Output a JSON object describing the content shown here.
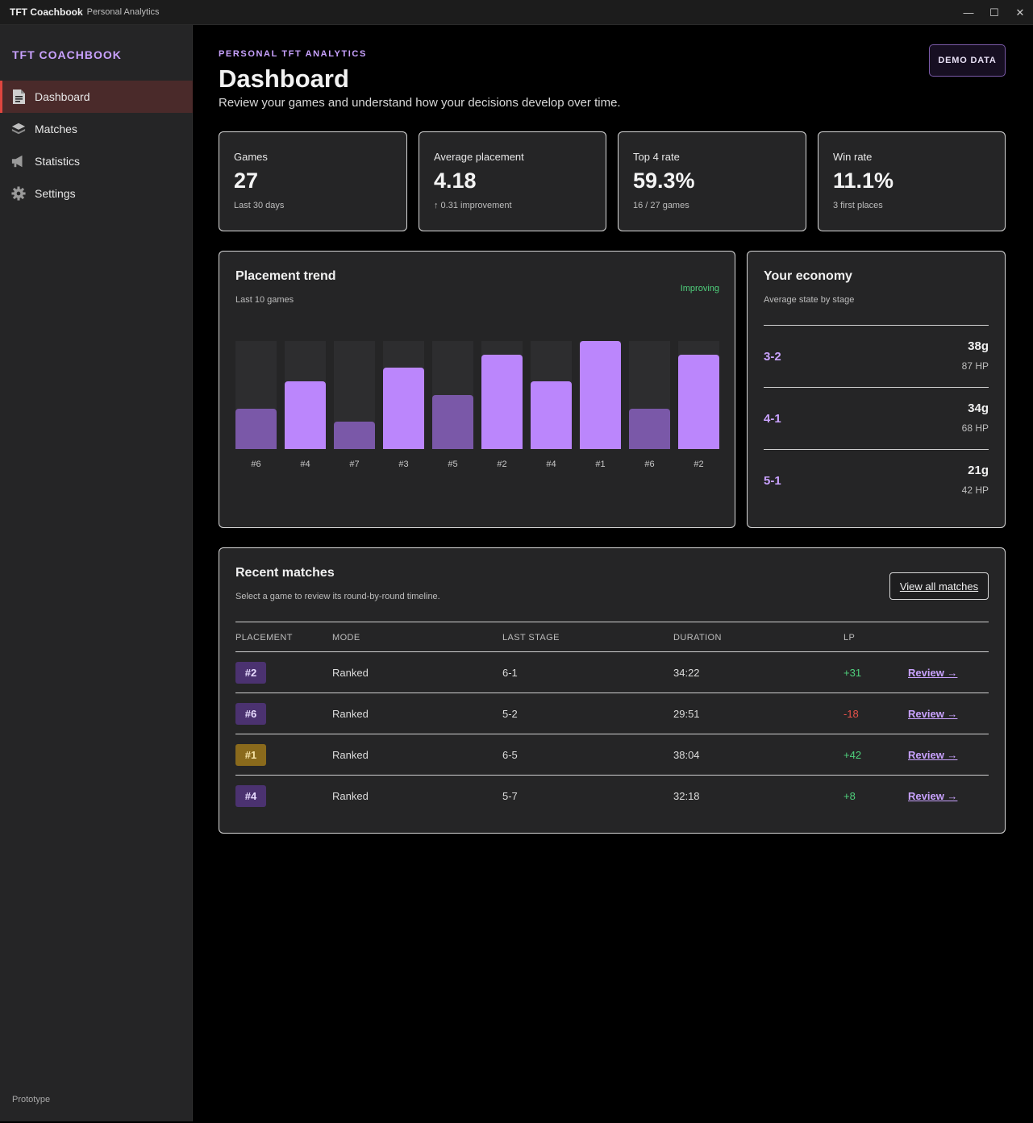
{
  "window": {
    "app_name": "TFT Coachbook",
    "app_sub": "Personal Analytics",
    "controls": [
      "—",
      "☐",
      "✕"
    ]
  },
  "sidebar": {
    "brand": "TFT COACHBOOK",
    "items": [
      {
        "label": "Dashboard",
        "icon": "document-icon",
        "active": true
      },
      {
        "label": "Matches",
        "icon": "layers-icon",
        "active": false
      },
      {
        "label": "Statistics",
        "icon": "megaphone-icon",
        "active": false
      },
      {
        "label": "Settings",
        "icon": "gear-icon",
        "active": false
      }
    ],
    "footer": "Prototype"
  },
  "header": {
    "eyebrow": "PERSONAL TFT ANALYTICS",
    "title": "Dashboard",
    "subtitle": "Review your games and understand how your decisions develop over time.",
    "demo_button": "DEMO DATA"
  },
  "stats": [
    {
      "label": "Games",
      "value": "27",
      "sub": "Last 30 days"
    },
    {
      "label": "Average placement",
      "value": "4.18",
      "sub": "↑ 0.31 improvement"
    },
    {
      "label": "Top 4 rate",
      "value": "59.3%",
      "sub": "16 / 27 games"
    },
    {
      "label": "Win rate",
      "value": "11.1%",
      "sub": "3 first places"
    }
  ],
  "trend": {
    "title": "Placement trend",
    "subtitle": "Last 10 games",
    "badge": "Improving"
  },
  "chart_data": {
    "type": "bar",
    "categories": [
      "#6",
      "#4",
      "#7",
      "#3",
      "#5",
      "#2",
      "#4",
      "#1",
      "#6",
      "#2"
    ],
    "values": [
      6,
      4,
      7,
      3,
      5,
      2,
      4,
      1,
      6,
      2
    ],
    "note_scale": "lower placement = taller bar",
    "colors": {
      "top4": "#bb86fc",
      "bottom4": "#7a58a8",
      "track": "#2d2d2f"
    }
  },
  "economy": {
    "title": "Your economy",
    "subtitle": "Average state by stage",
    "rows": [
      {
        "stage": "3-2",
        "gold": "38g",
        "hp": "87 HP"
      },
      {
        "stage": "4-1",
        "gold": "34g",
        "hp": "68 HP"
      },
      {
        "stage": "5-1",
        "gold": "21g",
        "hp": "42 HP"
      }
    ]
  },
  "recent": {
    "title": "Recent matches",
    "subtitle": "Select a game to review its round-by-round timeline.",
    "view_all": "View all matches",
    "columns": [
      "PLACEMENT",
      "MODE",
      "LAST STAGE",
      "DURATION",
      "LP"
    ],
    "rows": [
      {
        "placement": "#2",
        "mode": "Ranked",
        "stage": "6-1",
        "duration": "34:22",
        "lp": "+31",
        "review": "Review →",
        "badge_color": "#4b3270",
        "lp_color": "#4fd07c"
      },
      {
        "placement": "#6",
        "mode": "Ranked",
        "stage": "5-2",
        "duration": "29:51",
        "lp": "-18",
        "review": "Review →",
        "badge_color": "#4b3270",
        "lp_color": "#e8524a"
      },
      {
        "placement": "#1",
        "mode": "Ranked",
        "stage": "6-5",
        "duration": "38:04",
        "lp": "+42",
        "review": "Review →",
        "badge_color": "#8a6a1c",
        "lp_color": "#4fd07c"
      },
      {
        "placement": "#4",
        "mode": "Ranked",
        "stage": "5-7",
        "duration": "32:18",
        "lp": "+8",
        "review": "Review →",
        "badge_color": "#4b3270",
        "lp_color": "#4fd07c"
      }
    ]
  }
}
